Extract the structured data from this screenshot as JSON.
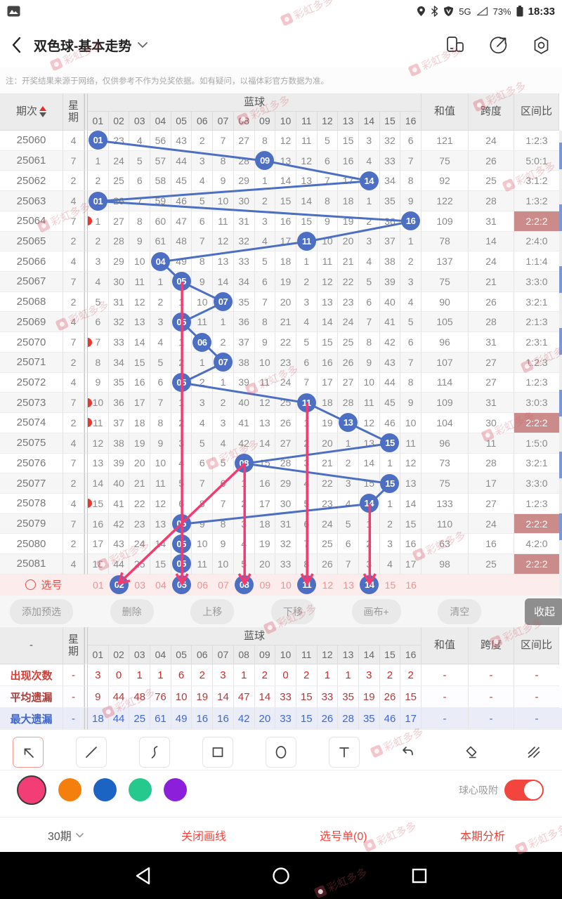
{
  "status_bar": {
    "time": "18:33",
    "battery_percent": "73%",
    "network": "5G"
  },
  "nav": {
    "title": "双色球-基本走势"
  },
  "notice": {
    "text": "注：开奖结果来源于网络，仅供参考不作为兑奖依据。如有疑问，以福体彩官方数据为准。"
  },
  "table": {
    "headers": {
      "period": "期次",
      "week_lines": [
        "星",
        "期"
      ],
      "group": "蓝球",
      "sum": "和值",
      "span": "跨度",
      "ratio": "区间比"
    },
    "ball_headers": [
      "01",
      "02",
      "03",
      "04",
      "05",
      "06",
      "07",
      "08",
      "09",
      "10",
      "11",
      "12",
      "13",
      "14",
      "15",
      "16"
    ],
    "rows": [
      {
        "period": "25060",
        "week": "4",
        "ball": 1,
        "cells": [
          "01",
          "23",
          "4",
          "56",
          "43",
          "2",
          "7",
          "27",
          "8",
          "12",
          "11",
          "5",
          "15",
          "3",
          "32",
          "6"
        ],
        "sum": "121",
        "span": "24",
        "ratio": "1:2:3",
        "hl": false,
        "marker": false
      },
      {
        "period": "25061",
        "week": "7",
        "ball": 9,
        "cells": [
          "1",
          "24",
          "5",
          "57",
          "44",
          "3",
          "8",
          "28",
          "09",
          "13",
          "12",
          "6",
          "16",
          "4",
          "33",
          "7"
        ],
        "sum": "75",
        "span": "26",
        "ratio": "5:0:1",
        "hl": false,
        "marker": false
      },
      {
        "period": "25062",
        "week": "2",
        "ball": 14,
        "cells": [
          "2",
          "25",
          "6",
          "58",
          "45",
          "4",
          "9",
          "29",
          "1",
          "14",
          "13",
          "7",
          "17",
          "14",
          "34",
          "8"
        ],
        "sum": "92",
        "span": "25",
        "ratio": "3:1:2",
        "hl": false,
        "marker": false
      },
      {
        "period": "25063",
        "week": "4",
        "ball": 1,
        "cells": [
          "01",
          "26",
          "7",
          "59",
          "46",
          "5",
          "10",
          "30",
          "2",
          "15",
          "14",
          "8",
          "18",
          "1",
          "35",
          "9"
        ],
        "sum": "122",
        "span": "28",
        "ratio": "1:3:2",
        "hl": false,
        "marker": false
      },
      {
        "period": "25064",
        "week": "7",
        "ball": 16,
        "cells": [
          "1",
          "27",
          "8",
          "60",
          "47",
          "6",
          "11",
          "31",
          "3",
          "16",
          "15",
          "9",
          "19",
          "2",
          "36",
          "16"
        ],
        "sum": "109",
        "span": "31",
        "ratio": "2:2:2",
        "hl": true,
        "marker": true
      },
      {
        "period": "25065",
        "week": "2",
        "ball": 11,
        "cells": [
          "2",
          "28",
          "9",
          "61",
          "48",
          "7",
          "12",
          "32",
          "4",
          "17",
          "11",
          "10",
          "20",
          "3",
          "37",
          "1"
        ],
        "sum": "78",
        "span": "14",
        "ratio": "2:4:0",
        "hl": false,
        "marker": false
      },
      {
        "period": "25066",
        "week": "4",
        "ball": 4,
        "cells": [
          "3",
          "29",
          "10",
          "04",
          "49",
          "8",
          "13",
          "33",
          "5",
          "18",
          "1",
          "11",
          "21",
          "4",
          "38",
          "2"
        ],
        "sum": "137",
        "span": "24",
        "ratio": "1:1:4",
        "hl": false,
        "marker": false
      },
      {
        "period": "25067",
        "week": "7",
        "ball": 5,
        "cells": [
          "4",
          "30",
          "11",
          "1",
          "05",
          "9",
          "14",
          "34",
          "6",
          "19",
          "2",
          "12",
          "22",
          "5",
          "39",
          "3"
        ],
        "sum": "75",
        "span": "21",
        "ratio": "3:3:0",
        "hl": false,
        "marker": false
      },
      {
        "period": "25068",
        "week": "2",
        "ball": 7,
        "cells": [
          "5",
          "31",
          "12",
          "2",
          "1",
          "10",
          "07",
          "35",
          "7",
          "20",
          "3",
          "13",
          "23",
          "6",
          "40",
          "4"
        ],
        "sum": "90",
        "span": "26",
        "ratio": "3:2:1",
        "hl": false,
        "marker": false
      },
      {
        "period": "25069",
        "week": "4",
        "ball": 5,
        "cells": [
          "6",
          "32",
          "13",
          "3",
          "05",
          "11",
          "1",
          "36",
          "8",
          "21",
          "4",
          "14",
          "24",
          "7",
          "41",
          "5"
        ],
        "sum": "105",
        "span": "28",
        "ratio": "2:1:3",
        "hl": false,
        "marker": false
      },
      {
        "period": "25070",
        "week": "7",
        "ball": 6,
        "cells": [
          "7",
          "33",
          "14",
          "4",
          "1",
          "06",
          "2",
          "37",
          "9",
          "22",
          "5",
          "15",
          "25",
          "8",
          "42",
          "6"
        ],
        "sum": "96",
        "span": "31",
        "ratio": "2:3:1",
        "hl": false,
        "marker": true
      },
      {
        "period": "25071",
        "week": "2",
        "ball": 7,
        "cells": [
          "8",
          "34",
          "15",
          "5",
          "2",
          "1",
          "07",
          "38",
          "10",
          "23",
          "6",
          "16",
          "26",
          "9",
          "43",
          "7"
        ],
        "sum": "107",
        "span": "27",
        "ratio": "1:2:3",
        "hl": false,
        "marker": false
      },
      {
        "period": "25072",
        "week": "4",
        "ball": 5,
        "cells": [
          "9",
          "35",
          "16",
          "6",
          "05",
          "2",
          "1",
          "39",
          "11",
          "24",
          "7",
          "17",
          "27",
          "10",
          "44",
          "8"
        ],
        "sum": "114",
        "span": "27",
        "ratio": "1:2:3",
        "hl": false,
        "marker": false
      },
      {
        "period": "25073",
        "week": "7",
        "ball": 11,
        "cells": [
          "10",
          "36",
          "17",
          "7",
          "1",
          "3",
          "2",
          "40",
          "12",
          "25",
          "11",
          "18",
          "28",
          "11",
          "45",
          "9"
        ],
        "sum": "109",
        "span": "31",
        "ratio": "3:0:3",
        "hl": false,
        "marker": true
      },
      {
        "period": "25074",
        "week": "2",
        "ball": 13,
        "cells": [
          "11",
          "37",
          "18",
          "8",
          "2",
          "4",
          "3",
          "41",
          "13",
          "26",
          "1",
          "19",
          "13",
          "12",
          "46",
          "10"
        ],
        "sum": "104",
        "span": "30",
        "ratio": "2:2:2",
        "hl": true,
        "marker": true
      },
      {
        "period": "25075",
        "week": "4",
        "ball": 15,
        "cells": [
          "12",
          "38",
          "19",
          "9",
          "3",
          "5",
          "4",
          "42",
          "14",
          "27",
          "2",
          "20",
          "1",
          "13",
          "15",
          "11"
        ],
        "sum": "96",
        "span": "11",
        "ratio": "1:5:0",
        "hl": false,
        "marker": false
      },
      {
        "period": "25076",
        "week": "7",
        "ball": 8,
        "cells": [
          "13",
          "39",
          "20",
          "10",
          "4",
          "6",
          "5",
          "08",
          "15",
          "28",
          "3",
          "21",
          "2",
          "14",
          "1",
          "12"
        ],
        "sum": "73",
        "span": "28",
        "ratio": "3:2:1",
        "hl": false,
        "marker": false
      },
      {
        "period": "25077",
        "week": "2",
        "ball": 15,
        "cells": [
          "14",
          "40",
          "21",
          "11",
          "5",
          "7",
          "6",
          "1",
          "16",
          "29",
          "4",
          "22",
          "3",
          "15",
          "15",
          "13"
        ],
        "sum": "75",
        "span": "17",
        "ratio": "3:3:0",
        "hl": false,
        "marker": false
      },
      {
        "period": "25078",
        "week": "4",
        "ball": 14,
        "cells": [
          "15",
          "41",
          "22",
          "12",
          "6",
          "8",
          "7",
          "2",
          "17",
          "30",
          "5",
          "23",
          "4",
          "14",
          "1",
          "14"
        ],
        "sum": "133",
        "span": "27",
        "ratio": "1:2:3",
        "hl": false,
        "marker": true
      },
      {
        "period": "25079",
        "week": "7",
        "ball": 5,
        "cells": [
          "16",
          "42",
          "23",
          "13",
          "05",
          "9",
          "8",
          "3",
          "18",
          "31",
          "6",
          "24",
          "5",
          "1",
          "2",
          "15"
        ],
        "sum": "110",
        "span": "24",
        "ratio": "2:2:2",
        "hl": true,
        "marker": false
      },
      {
        "period": "25080",
        "week": "2",
        "ball": 5,
        "cells": [
          "17",
          "43",
          "24",
          "14",
          "05",
          "10",
          "9",
          "4",
          "19",
          "32",
          "7",
          "25",
          "6",
          "2",
          "3",
          "16"
        ],
        "sum": "63",
        "span": "16",
        "ratio": "4:2:0",
        "hl": false,
        "marker": false
      },
      {
        "period": "25081",
        "week": "4",
        "ball": 5,
        "cells": [
          "18",
          "44",
          "25",
          "15",
          "05",
          "11",
          "10",
          "5",
          "20",
          "33",
          "8",
          "26",
          "7",
          "3",
          "4",
          "17"
        ],
        "sum": "98",
        "span": "25",
        "ratio": "2:2:2",
        "hl": true,
        "marker": false
      }
    ]
  },
  "annotations": [
    {
      "from": {
        "row": 7,
        "col": 5
      },
      "to": {
        "row": "select",
        "col": 5
      }
    },
    {
      "from": {
        "row": 16,
        "col": 8
      },
      "to": {
        "row": "select",
        "col": 8
      }
    },
    {
      "from": {
        "row": 13,
        "col": 11
      },
      "to": {
        "row": "select",
        "col": 11
      }
    },
    {
      "from": {
        "row": 18,
        "col": 14
      },
      "to": {
        "row": "select",
        "col": 14
      }
    },
    {
      "from": {
        "row": 16,
        "col": 8
      },
      "to": {
        "row": "select",
        "col": 2
      }
    }
  ],
  "select_row": {
    "label": "选号",
    "numbers": [
      "01",
      "02",
      "03",
      "04",
      "05",
      "06",
      "07",
      "08",
      "09",
      "10",
      "11",
      "12",
      "13",
      "14",
      "15",
      "16"
    ],
    "selected": [
      2,
      5,
      8,
      11,
      14
    ]
  },
  "action_buttons": {
    "items": [
      "添加预选",
      "删除",
      "上移",
      "下移",
      "画布+",
      "清空"
    ],
    "collapse": "收起"
  },
  "stats": {
    "corner": "-",
    "rows": [
      {
        "label": "出现次数",
        "week": "-",
        "values": [
          "3",
          "0",
          "1",
          "1",
          "6",
          "2",
          "3",
          "1",
          "2",
          "0",
          "2",
          "1",
          "1",
          "3",
          "2",
          "2"
        ],
        "sum": "-",
        "span": "-",
        "ratio": "-"
      },
      {
        "label": "平均遗漏",
        "week": "-",
        "values": [
          "9",
          "44",
          "48",
          "76",
          "10",
          "19",
          "14",
          "47",
          "14",
          "33",
          "15",
          "33",
          "35",
          "19",
          "26",
          "15"
        ],
        "sum": "-",
        "span": "-",
        "ratio": "-"
      },
      {
        "label": "最大遗漏",
        "week": "-",
        "values": [
          "18",
          "44",
          "25",
          "61",
          "49",
          "16",
          "16",
          "42",
          "20",
          "33",
          "15",
          "26",
          "28",
          "35",
          "46",
          "17"
        ],
        "sum": "-",
        "span": "-",
        "ratio": "-"
      }
    ]
  },
  "draw_toolbar": {
    "tools": [
      "arrow-nw",
      "line",
      "curve",
      "rectangle",
      "ellipse",
      "text",
      "undo",
      "eraser",
      "multi-eraser"
    ],
    "selected": "arrow-nw"
  },
  "palette": {
    "colors": [
      "#f23d77",
      "#f57f0d",
      "#1b64c4",
      "#25c98d",
      "#8c1fd9"
    ],
    "selected": "#f23d77",
    "snap_label": "球心吸附",
    "snap_on": true
  },
  "bottom_bar": {
    "period": "30期",
    "close": "关闭画线",
    "ticket": "选号单(0)",
    "analysis": "本期分析"
  },
  "watermark": {
    "text": "彩虹多多"
  },
  "colors": {
    "ball": "#4d6fc3",
    "trend_line": "#4d6fc3",
    "annotation": "#f53a70",
    "highlight": "#cb8b8b"
  }
}
